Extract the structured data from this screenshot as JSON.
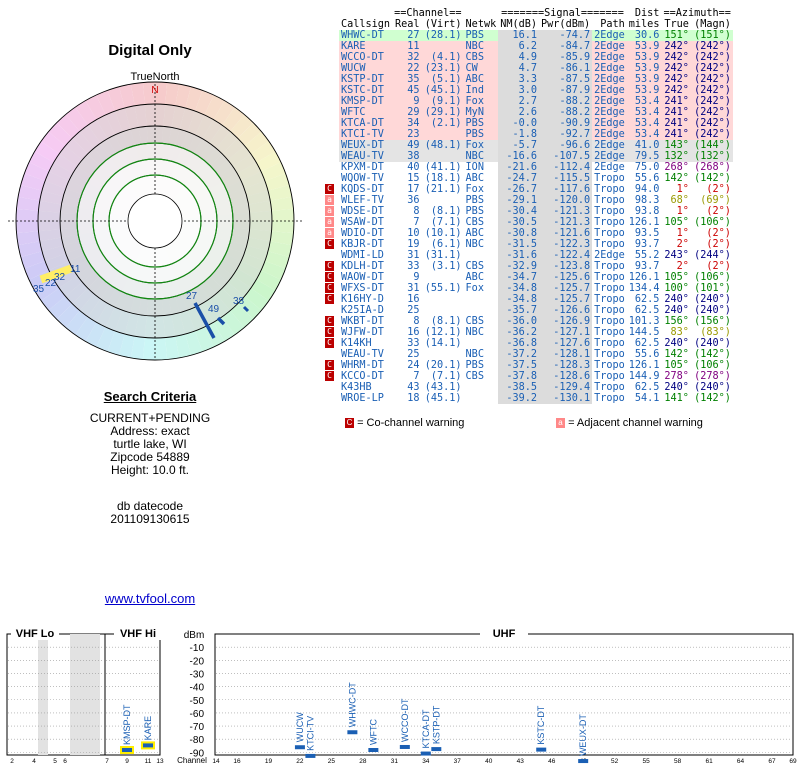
{
  "radar": {
    "title": "Digital Only",
    "north_label": "TrueNorth",
    "north_marker": "N",
    "labels": [
      {
        "text": "35",
        "group": "left"
      },
      {
        "text": "22",
        "group": "left"
      },
      {
        "text": "32",
        "group": "left"
      },
      {
        "text": "11",
        "group": "left"
      },
      {
        "text": "27",
        "group": "right"
      },
      {
        "text": "49",
        "group": "right"
      },
      {
        "text": "38",
        "group": "right"
      }
    ]
  },
  "criteria": {
    "title": "Search Criteria",
    "mode": "CURRENT+PENDING",
    "address": "Address: exact",
    "city": "turtle lake, WI",
    "zip": "Zipcode 54889",
    "height": "Height: 10.0 ft.",
    "db_label": "db datecode",
    "db_code": "201109130615"
  },
  "link": {
    "text": "www.tvfool.com"
  },
  "table": {
    "group_headers": {
      "channel": "==Channel==",
      "signal": "=======Signal=======",
      "azimuth": "==Azimuth=="
    },
    "headers": {
      "callsign": "Callsign",
      "real": "Real",
      "virt": "(Virt)",
      "network": "Netwk",
      "nm": "NM(dB)",
      "pwr": "Pwr(dBm)",
      "path": "Path",
      "dist_top": "Dist",
      "dist": "miles",
      "true_az": "True",
      "magn": "(Magn)"
    },
    "rows": [
      {
        "warn": "",
        "callsign": "WHWC-DT",
        "real": "27",
        "virt": "(28.1)",
        "net": "PBS",
        "nm": "16.1",
        "pwr": "-74.7",
        "path": "2Edge",
        "dist": "30.6",
        "true": "151°",
        "magn": "(151°)",
        "az_color": "#008000",
        "band": "#d0ffd0"
      },
      {
        "warn": "",
        "callsign": "KARE",
        "real": "11",
        "virt": "",
        "net": "NBC",
        "nm": "6.2",
        "pwr": "-84.7",
        "path": "2Edge",
        "dist": "53.9",
        "true": "242°",
        "magn": "(242°)",
        "az_color": "#000080",
        "band": "#ffd8d8"
      },
      {
        "warn": "",
        "callsign": "WCCO-DT",
        "real": "32",
        "virt": "(4.1)",
        "net": "CBS",
        "nm": "4.9",
        "pwr": "-85.9",
        "path": "2Edge",
        "dist": "53.9",
        "true": "242°",
        "magn": "(242°)",
        "az_color": "#000080",
        "band": "#ffd8d8"
      },
      {
        "warn": "",
        "callsign": "WUCW",
        "real": "22",
        "virt": "(23.1)",
        "net": "CW",
        "nm": "4.7",
        "pwr": "-86.1",
        "path": "2Edge",
        "dist": "53.9",
        "true": "242°",
        "magn": "(242°)",
        "az_color": "#000080",
        "band": "#ffd8d8"
      },
      {
        "warn": "",
        "callsign": "KSTP-DT",
        "real": "35",
        "virt": "(5.1)",
        "net": "ABC",
        "nm": "3.3",
        "pwr": "-87.5",
        "path": "2Edge",
        "dist": "53.9",
        "true": "242°",
        "magn": "(242°)",
        "az_color": "#000080",
        "band": "#ffd8d8"
      },
      {
        "warn": "",
        "callsign": "KSTC-DT",
        "real": "45",
        "virt": "(45.1)",
        "net": "Ind",
        "nm": "3.0",
        "pwr": "-87.9",
        "path": "2Edge",
        "dist": "53.9",
        "true": "242°",
        "magn": "(242°)",
        "az_color": "#000080",
        "band": "#ffd8d8"
      },
      {
        "warn": "",
        "callsign": "KMSP-DT",
        "real": "9",
        "virt": "(9.1)",
        "net": "Fox",
        "nm": "2.7",
        "pwr": "-88.2",
        "path": "2Edge",
        "dist": "53.4",
        "true": "241°",
        "magn": "(242°)",
        "az_color": "#000080",
        "band": "#ffd8d8"
      },
      {
        "warn": "",
        "callsign": "WFTC",
        "real": "29",
        "virt": "(29.1)",
        "net": "MyN",
        "nm": "2.6",
        "pwr": "-88.2",
        "path": "2Edge",
        "dist": "53.4",
        "true": "241°",
        "magn": "(242°)",
        "az_color": "#000080",
        "band": "#ffd8d8"
      },
      {
        "warn": "",
        "callsign": "KTCA-DT",
        "real": "34",
        "virt": "(2.1)",
        "net": "PBS",
        "nm": "-0.0",
        "pwr": "-90.9",
        "path": "2Edge",
        "dist": "53.4",
        "true": "241°",
        "magn": "(242°)",
        "az_color": "#000080",
        "band": "#ffd8d8"
      },
      {
        "warn": "",
        "callsign": "KTCI-TV",
        "real": "23",
        "virt": "",
        "net": "PBS",
        "nm": "-1.8",
        "pwr": "-92.7",
        "path": "2Edge",
        "dist": "53.4",
        "true": "241°",
        "magn": "(242°)",
        "az_color": "#000080",
        "band": "#ffd8d8"
      },
      {
        "warn": "",
        "callsign": "WEUX-DT",
        "real": "49",
        "virt": "(48.1)",
        "net": "Fox",
        "nm": "-5.7",
        "pwr": "-96.6",
        "path": "2Edge",
        "dist": "41.0",
        "true": "143°",
        "magn": "(144°)",
        "az_color": "#008000",
        "band": "#e4e4e4"
      },
      {
        "warn": "",
        "callsign": "WEAU-TV",
        "real": "38",
        "virt": "",
        "net": "NBC",
        "nm": "-16.6",
        "pwr": "-107.5",
        "path": "2Edge",
        "dist": "79.5",
        "true": "132°",
        "magn": "(132°)",
        "az_color": "#008000",
        "band": "#e4e4e4"
      },
      {
        "warn": "",
        "callsign": "KPXM-DT",
        "real": "40",
        "virt": "(41.1)",
        "net": "ION",
        "nm": "-21.6",
        "pwr": "-112.4",
        "path": "2Edge",
        "dist": "75.0",
        "true": "268°",
        "magn": "(268°)",
        "az_color": "#800080",
        "band": "#ffffff"
      },
      {
        "warn": "",
        "callsign": "WQOW-TV",
        "real": "15",
        "virt": "(18.1)",
        "net": "ABC",
        "nm": "-24.7",
        "pwr": "-115.5",
        "path": "Tropo",
        "dist": "55.6",
        "true": "142°",
        "magn": "(142°)",
        "az_color": "#008000",
        "band": "#ffffff"
      },
      {
        "warn": "C",
        "callsign": "KQDS-DT",
        "real": "17",
        "virt": "(21.1)",
        "net": "Fox",
        "nm": "-26.7",
        "pwr": "-117.6",
        "path": "Tropo",
        "dist": "94.0",
        "true": "1°",
        "magn": "(2°)",
        "az_color": "#cc0000",
        "band": "#ffffff"
      },
      {
        "warn": "a",
        "callsign": "WLEF-TV",
        "real": "36",
        "virt": "",
        "net": "PBS",
        "nm": "-29.1",
        "pwr": "-120.0",
        "path": "Tropo",
        "dist": "98.3",
        "true": "68°",
        "magn": "(69°)",
        "az_color": "#999900",
        "band": "#ffffff"
      },
      {
        "warn": "a",
        "callsign": "WDSE-DT",
        "real": "8",
        "virt": "(8.1)",
        "net": "PBS",
        "nm": "-30.4",
        "pwr": "-121.3",
        "path": "Tropo",
        "dist": "93.8",
        "true": "1°",
        "magn": "(2°)",
        "az_color": "#cc0000",
        "band": "#ffffff"
      },
      {
        "warn": "a",
        "callsign": "WSAW-DT",
        "real": "7",
        "virt": "(7.1)",
        "net": "CBS",
        "nm": "-30.5",
        "pwr": "-121.3",
        "path": "Tropo",
        "dist": "126.1",
        "true": "105°",
        "magn": "(106°)",
        "az_color": "#008000",
        "band": "#ffffff"
      },
      {
        "warn": "a",
        "callsign": "WDIO-DT",
        "real": "10",
        "virt": "(10.1)",
        "net": "ABC",
        "nm": "-30.8",
        "pwr": "-121.6",
        "path": "Tropo",
        "dist": "93.5",
        "true": "1°",
        "magn": "(2°)",
        "az_color": "#cc0000",
        "band": "#ffffff"
      },
      {
        "warn": "C",
        "callsign": "KBJR-DT",
        "real": "19",
        "virt": "(6.1)",
        "net": "NBC",
        "nm": "-31.5",
        "pwr": "-122.3",
        "path": "Tropo",
        "dist": "93.7",
        "true": "2°",
        "magn": "(2°)",
        "az_color": "#cc0000",
        "band": "#ffffff"
      },
      {
        "warn": "",
        "callsign": "WDMI-LD",
        "real": "31",
        "virt": "(31.1)",
        "net": "",
        "nm": "-31.6",
        "pwr": "-122.4",
        "path": "2Edge",
        "dist": "55.2",
        "true": "243°",
        "magn": "(244°)",
        "az_color": "#000080",
        "band": "#ffffff"
      },
      {
        "warn": "C",
        "callsign": "KDLH-DT",
        "real": "33",
        "virt": "(3.1)",
        "net": "CBS",
        "nm": "-32.9",
        "pwr": "-123.8",
        "path": "Tropo",
        "dist": "93.7",
        "true": "2°",
        "magn": "(2°)",
        "az_color": "#cc0000",
        "band": "#ffffff"
      },
      {
        "warn": "C",
        "callsign": "WAOW-DT",
        "real": "9",
        "virt": "",
        "net": "ABC",
        "nm": "-34.7",
        "pwr": "-125.6",
        "path": "Tropo",
        "dist": "126.1",
        "true": "105°",
        "magn": "(106°)",
        "az_color": "#008000",
        "band": "#ffffff"
      },
      {
        "warn": "C",
        "callsign": "WFXS-DT",
        "real": "31",
        "virt": "(55.1)",
        "net": "Fox",
        "nm": "-34.8",
        "pwr": "-125.7",
        "path": "Tropo",
        "dist": "134.4",
        "true": "100°",
        "magn": "(101°)",
        "az_color": "#008000",
        "band": "#ffffff"
      },
      {
        "warn": "C",
        "callsign": "K16HY-D",
        "real": "16",
        "virt": "",
        "net": "",
        "nm": "-34.8",
        "pwr": "-125.7",
        "path": "Tropo",
        "dist": "62.5",
        "true": "240°",
        "magn": "(240°)",
        "az_color": "#000080",
        "band": "#ffffff"
      },
      {
        "warn": "",
        "callsign": "K25IA-D",
        "real": "25",
        "virt": "",
        "net": "",
        "nm": "-35.7",
        "pwr": "-126.6",
        "path": "Tropo",
        "dist": "62.5",
        "true": "240°",
        "magn": "(240°)",
        "az_color": "#000080",
        "band": "#ffffff"
      },
      {
        "warn": "C",
        "callsign": "WKBT-DT",
        "real": "8",
        "virt": "(8.1)",
        "net": "CBS",
        "nm": "-36.0",
        "pwr": "-126.9",
        "path": "Tropo",
        "dist": "101.3",
        "true": "156°",
        "magn": "(156°)",
        "az_color": "#008000",
        "band": "#ffffff"
      },
      {
        "warn": "C",
        "callsign": "WJFW-DT",
        "real": "16",
        "virt": "(12.1)",
        "net": "NBC",
        "nm": "-36.2",
        "pwr": "-127.1",
        "path": "Tropo",
        "dist": "144.5",
        "true": "83°",
        "magn": "(83°)",
        "az_color": "#999900",
        "band": "#ffffff"
      },
      {
        "warn": "C",
        "callsign": "K14KH",
        "real": "33",
        "virt": "(14.1)",
        "net": "",
        "nm": "-36.8",
        "pwr": "-127.6",
        "path": "Tropo",
        "dist": "62.5",
        "true": "240°",
        "magn": "(240°)",
        "az_color": "#000080",
        "band": "#ffffff"
      },
      {
        "warn": "",
        "callsign": "WEAU-TV",
        "real": "25",
        "virt": "",
        "net": "NBC",
        "nm": "-37.2",
        "pwr": "-128.1",
        "path": "Tropo",
        "dist": "55.6",
        "true": "142°",
        "magn": "(142°)",
        "az_color": "#008000",
        "band": "#ffffff"
      },
      {
        "warn": "C",
        "callsign": "WHRM-DT",
        "real": "24",
        "virt": "(20.1)",
        "net": "PBS",
        "nm": "-37.5",
        "pwr": "-128.3",
        "path": "Tropo",
        "dist": "126.1",
        "true": "105°",
        "magn": "(106°)",
        "az_color": "#008000",
        "band": "#ffffff"
      },
      {
        "warn": "C",
        "callsign": "KCCO-DT",
        "real": "7",
        "virt": "(7.1)",
        "net": "CBS",
        "nm": "-37.8",
        "pwr": "-128.6",
        "path": "Tropo",
        "dist": "144.9",
        "true": "278°",
        "magn": "(278°)",
        "az_color": "#800080",
        "band": "#ffffff"
      },
      {
        "warn": "",
        "callsign": "K43HB",
        "real": "43",
        "virt": "(43.1)",
        "net": "",
        "nm": "-38.5",
        "pwr": "-129.4",
        "path": "Tropo",
        "dist": "62.5",
        "true": "240°",
        "magn": "(240°)",
        "az_color": "#000080",
        "band": "#ffffff"
      },
      {
        "warn": "",
        "callsign": "WROE-LP",
        "real": "18",
        "virt": "(45.1)",
        "net": "",
        "nm": "-39.2",
        "pwr": "-130.1",
        "path": "Tropo",
        "dist": "54.1",
        "true": "141°",
        "magn": "(142°)",
        "az_color": "#008000",
        "band": "#ffffff"
      }
    ]
  },
  "legend": {
    "co_badge": "C",
    "co_text": "= Co-channel warning",
    "adj_badge": "a",
    "adj_text": "= Adjacent channel warning"
  },
  "colors": {
    "link_blue": "#0055cc",
    "co_warning": "#bb0000",
    "adj_warning": "#ff8888",
    "bar_blue": "#1a5fb4"
  },
  "spectrum": {
    "sections": [
      "VHF Lo",
      "VHF Hi",
      "UHF"
    ],
    "y_unit": "dBm",
    "y_ticks": [
      "-10",
      "-20",
      "-30",
      "-40",
      "-50",
      "-60",
      "-70",
      "-80",
      "-90"
    ],
    "x_axis_label": "Channel",
    "vhf_lo_ticks": [
      "2",
      "4",
      "5",
      "6"
    ],
    "vhf_hi_ticks": [
      "7",
      "9",
      "11",
      "13"
    ],
    "uhf_ticks": [
      "14",
      "16",
      "19",
      "22",
      "25",
      "28",
      "31",
      "34",
      "37",
      "40",
      "43",
      "46",
      "49",
      "52",
      "55",
      "58",
      "61",
      "64",
      "67",
      "69"
    ],
    "stations": [
      {
        "callsign": "KMSP-DT",
        "channel": 9,
        "dbm": -88.2,
        "band": "vhf_hi",
        "highlight": true
      },
      {
        "callsign": "KARE",
        "channel": 11,
        "dbm": -84.7,
        "band": "vhf_hi",
        "highlight": true
      },
      {
        "callsign": "WUCW",
        "channel": 22,
        "dbm": -86.1,
        "band": "uhf",
        "highlight": false
      },
      {
        "callsign": "KTCI-TV",
        "channel": 23,
        "dbm": -92.7,
        "band": "uhf",
        "highlight": false
      },
      {
        "callsign": "WHWC-DT",
        "channel": 27,
        "dbm": -74.7,
        "band": "uhf",
        "highlight": false
      },
      {
        "callsign": "WFTC",
        "channel": 29,
        "dbm": -88.2,
        "band": "uhf",
        "highlight": false
      },
      {
        "callsign": "WCCO-DT",
        "channel": 32,
        "dbm": -85.9,
        "band": "uhf",
        "highlight": false
      },
      {
        "callsign": "KTCA-DT",
        "channel": 34,
        "dbm": -90.9,
        "band": "uhf",
        "highlight": false
      },
      {
        "callsign": "KSTP-DT",
        "channel": 35,
        "dbm": -87.5,
        "band": "uhf",
        "highlight": false
      },
      {
        "callsign": "KSTC-DT",
        "channel": 45,
        "dbm": -87.9,
        "band": "uhf",
        "highlight": false
      },
      {
        "callsign": "WEUX-DT",
        "channel": 49,
        "dbm": -96.6,
        "band": "uhf",
        "highlight": false
      }
    ]
  }
}
